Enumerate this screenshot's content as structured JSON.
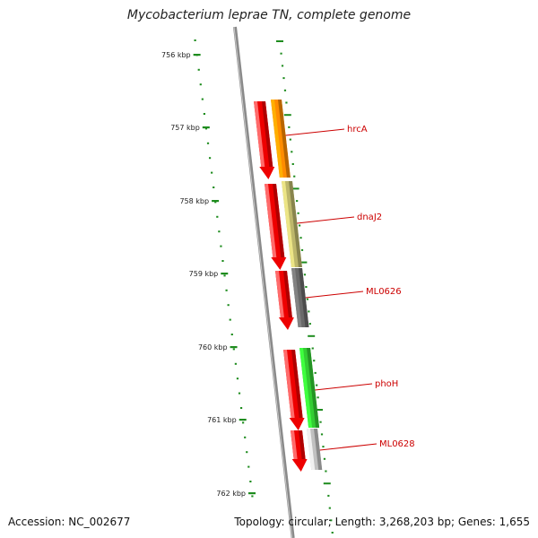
{
  "title": "Mycobacterium leprae TN, complete genome",
  "footer": {
    "accession": "Accession: NC_002677",
    "topology": "Topology: circular; Length: 3,268,203 bp; Genes: 1,655"
  },
  "colors": {
    "backbone": "#8a8a8a",
    "ruler": "#1e8c1e",
    "reverse_strand": "#ee0000",
    "label": "#cc0000"
  },
  "ruler_ticks": [
    "756 kbp",
    "757 kbp",
    "758 kbp",
    "759 kbp",
    "760 kbp",
    "761 kbp",
    "762 kbp"
  ],
  "genes": [
    {
      "name": "hrcA",
      "color": "#ff8c00"
    },
    {
      "name": "dnaJ2",
      "color": "#bdb76b"
    },
    {
      "name": "ML0626",
      "color": "#696969"
    },
    {
      "name": "phoH",
      "color": "#32cd32"
    },
    {
      "name": "ML0628",
      "color": "#c0c0c0"
    }
  ]
}
